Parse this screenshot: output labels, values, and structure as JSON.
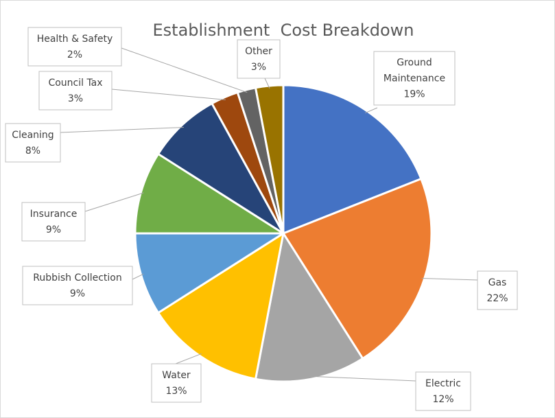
{
  "chart_data": {
    "type": "pie",
    "title": "Establishment  Cost Breakdown",
    "slices": [
      {
        "label": "Ground Maintenance",
        "label_lines": [
          "Ground",
          "Maintenance"
        ],
        "value": 19,
        "value_label": "19%",
        "color": "#4472C4"
      },
      {
        "label": "Gas",
        "label_lines": [
          "Gas"
        ],
        "value": 22,
        "value_label": "22%",
        "color": "#ED7D31"
      },
      {
        "label": "Electric",
        "label_lines": [
          "Electric"
        ],
        "value": 12,
        "value_label": "12%",
        "color": "#A5A5A5"
      },
      {
        "label": "Water",
        "label_lines": [
          "Water"
        ],
        "value": 13,
        "value_label": "13%",
        "color": "#FFC000"
      },
      {
        "label": "Rubbish Collection",
        "label_lines": [
          "Rubbish Collection"
        ],
        "value": 9,
        "value_label": "9%",
        "color": "#5B9BD5"
      },
      {
        "label": "Insurance",
        "label_lines": [
          "Insurance"
        ],
        "value": 9,
        "value_label": "9%",
        "color": "#70AD47"
      },
      {
        "label": "Cleaning",
        "label_lines": [
          "Cleaning"
        ],
        "value": 8,
        "value_label": "8%",
        "color": "#264478"
      },
      {
        "label": "Council Tax",
        "label_lines": [
          "Council Tax"
        ],
        "value": 3,
        "value_label": "3%",
        "color": "#9E480E"
      },
      {
        "label": "Health & Safety",
        "label_lines": [
          "Health & Safety"
        ],
        "value": 2,
        "value_label": "2%",
        "color": "#636363"
      },
      {
        "label": "Other",
        "label_lines": [
          "Other"
        ],
        "value": 3,
        "value_label": "3%",
        "color": "#997300"
      }
    ],
    "legend": "none",
    "data_labels": "category and percentage with leader lines"
  }
}
